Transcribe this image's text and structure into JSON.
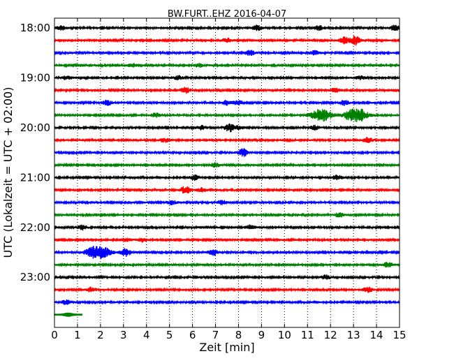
{
  "chart_data": {
    "type": "line",
    "title": "BW.FURT..EHZ 2016-04-07",
    "xlabel": "Zeit  [min]",
    "ylabel": "UTC (Lokalzeit = UTC + 02:00)",
    "xlim": [
      0,
      15
    ],
    "x_ticks": [
      "0",
      "1",
      "2",
      "3",
      "4",
      "5",
      "6",
      "7",
      "8",
      "9",
      "10",
      "11",
      "12",
      "13",
      "14",
      "15"
    ],
    "y_ticks": [
      "18:00",
      "19:00",
      "20:00",
      "21:00",
      "22:00",
      "23:00"
    ],
    "grid": "vertical dotted at each minute",
    "trace_interval_minutes": 15,
    "start_time": "18:00",
    "colors": [
      "#000000",
      "#ff0000",
      "#0000ff",
      "#008000"
    ],
    "traces": [
      {
        "start": "18:00",
        "color": "#000000",
        "bursts": [
          [
            0.3,
            0.5
          ],
          [
            8.8,
            0.6
          ],
          [
            11.5,
            0.6
          ],
          [
            14.8,
            0.7
          ]
        ]
      },
      {
        "start": "18:15",
        "color": "#ff0000",
        "bursts": [
          [
            7.5,
            0.5
          ],
          [
            12.6,
            0.9
          ],
          [
            13.1,
            1.2
          ]
        ]
      },
      {
        "start": "18:30",
        "color": "#0000ff",
        "bursts": [
          [
            8.5,
            0.6
          ],
          [
            11.3,
            0.5
          ]
        ]
      },
      {
        "start": "18:45",
        "color": "#008000",
        "bursts": [
          [
            3.4,
            0.4
          ],
          [
            6.3,
            0.4
          ]
        ]
      },
      {
        "start": "19:00",
        "color": "#000000",
        "bursts": [
          [
            0.5,
            0.4
          ],
          [
            5.4,
            0.5
          ],
          [
            13.3,
            0.4
          ]
        ]
      },
      {
        "start": "19:15",
        "color": "#ff0000",
        "bursts": [
          [
            5.7,
            0.7
          ],
          [
            12.2,
            0.5
          ]
        ]
      },
      {
        "start": "19:30",
        "color": "#0000ff",
        "bursts": [
          [
            2.3,
            0.6
          ],
          [
            7.5,
            0.6
          ],
          [
            8.0,
            0.6
          ],
          [
            12.6,
            0.6
          ]
        ]
      },
      {
        "start": "19:45",
        "color": "#008000",
        "bursts": [
          [
            4.4,
            0.5
          ],
          [
            11.6,
            1.5
          ],
          [
            13.1,
            2.0
          ]
        ]
      },
      {
        "start": "20:00",
        "color": "#000000",
        "bursts": [
          [
            6.4,
            0.5
          ],
          [
            7.6,
            1.0
          ],
          [
            8.0,
            0.5
          ],
          [
            11.3,
            0.5
          ]
        ]
      },
      {
        "start": "20:15",
        "color": "#ff0000",
        "bursts": [
          [
            4.8,
            0.5
          ],
          [
            13.6,
            0.7
          ]
        ]
      },
      {
        "start": "20:30",
        "color": "#0000ff",
        "bursts": [
          [
            8.2,
            1.0
          ]
        ]
      },
      {
        "start": "20:45",
        "color": "#008000",
        "bursts": [
          [
            7.0,
            0.5
          ]
        ]
      },
      {
        "start": "21:00",
        "color": "#000000",
        "bursts": [
          [
            6.1,
            0.6
          ],
          [
            12.3,
            0.6
          ]
        ]
      },
      {
        "start": "21:15",
        "color": "#ff0000",
        "bursts": [
          [
            5.7,
            1.0
          ],
          [
            6.4,
            0.5
          ]
        ]
      },
      {
        "start": "21:30",
        "color": "#0000ff",
        "bursts": [
          [
            5.1,
            0.5
          ],
          [
            7.3,
            0.5
          ]
        ]
      },
      {
        "start": "21:45",
        "color": "#008000",
        "bursts": [
          [
            12.4,
            0.6
          ]
        ]
      },
      {
        "start": "22:00",
        "color": "#000000",
        "bursts": [
          [
            1.2,
            0.6
          ],
          [
            8.5,
            0.5
          ]
        ]
      },
      {
        "start": "22:15",
        "color": "#ff0000",
        "bursts": [
          [
            3.1,
            0.5
          ],
          [
            3.8,
            0.5
          ]
        ]
      },
      {
        "start": "22:30",
        "color": "#0000ff",
        "bursts": [
          [
            1.9,
            2.0
          ],
          [
            3.1,
            1.0
          ],
          [
            6.9,
            0.7
          ]
        ]
      },
      {
        "start": "22:45",
        "color": "#008000",
        "bursts": [
          [
            14.5,
            0.6
          ]
        ]
      },
      {
        "start": "23:00",
        "color": "#000000",
        "bursts": [
          [
            11.8,
            0.5
          ]
        ]
      },
      {
        "start": "23:15",
        "color": "#ff0000",
        "bursts": [
          [
            1.6,
            0.6
          ],
          [
            13.6,
            0.7
          ]
        ]
      },
      {
        "start": "23:30",
        "color": "#0000ff",
        "bursts": [
          [
            0.5,
            0.5
          ]
        ]
      },
      {
        "start": "23:45",
        "color": "#008000",
        "bursts": [
          [
            0.6,
            0.3
          ]
        ],
        "end_minute": 1.2
      }
    ]
  }
}
